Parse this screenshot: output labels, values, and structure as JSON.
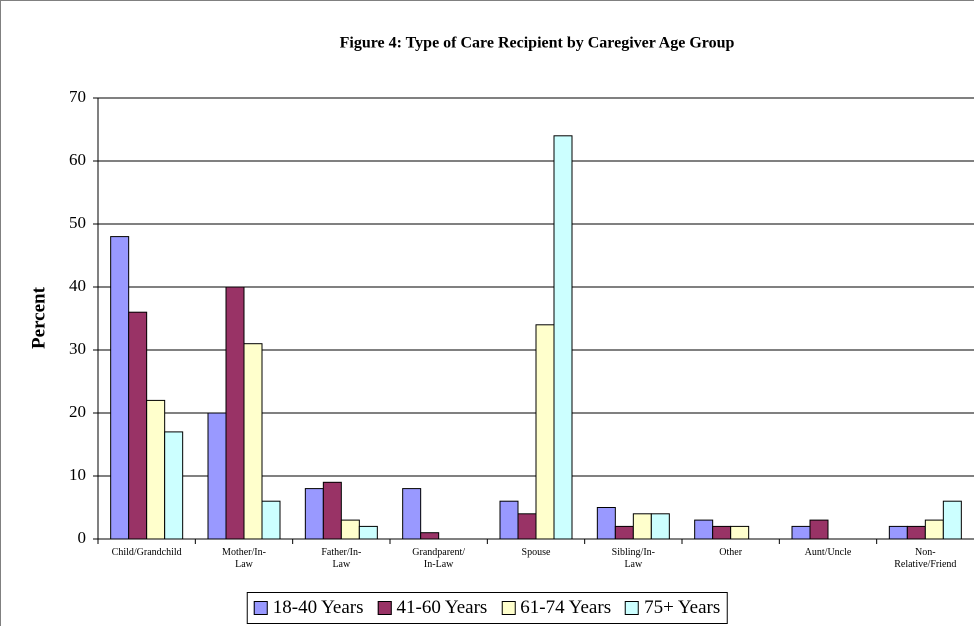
{
  "chart_data": {
    "type": "bar",
    "title": "Figure 4: Type of Care Recipient by Caregiver Age Group",
    "y_label": "Percent",
    "categories": [
      "Child/Grandchild",
      "Mother/In-Law",
      "Father/In-Law",
      "Grandparent/ In-Law",
      "Spouse",
      "Sibling/In-Law",
      "Other",
      "Aunt/Uncle",
      "Non- Relative/Friend"
    ],
    "series": [
      {
        "name": "18-40 Years",
        "color": "#9999ff",
        "values": [
          48,
          20,
          8,
          8,
          6,
          5,
          3,
          2,
          2
        ]
      },
      {
        "name": "41-60 Years",
        "color": "#993366",
        "values": [
          36,
          40,
          9,
          1,
          4,
          2,
          2,
          3,
          2
        ]
      },
      {
        "name": "61-74 Years",
        "color": "#ffffcc",
        "values": [
          22,
          31,
          3,
          null,
          34,
          4,
          2,
          null,
          3
        ]
      },
      {
        "name": "75+ Years",
        "color": "#ccffff",
        "values": [
          17,
          6,
          2,
          null,
          64,
          4,
          null,
          null,
          6
        ]
      }
    ],
    "ylim": [
      0,
      70
    ],
    "yticks": [
      0,
      10,
      20,
      30,
      40,
      50,
      60,
      70
    ],
    "grid": true,
    "legend": "bottom"
  }
}
